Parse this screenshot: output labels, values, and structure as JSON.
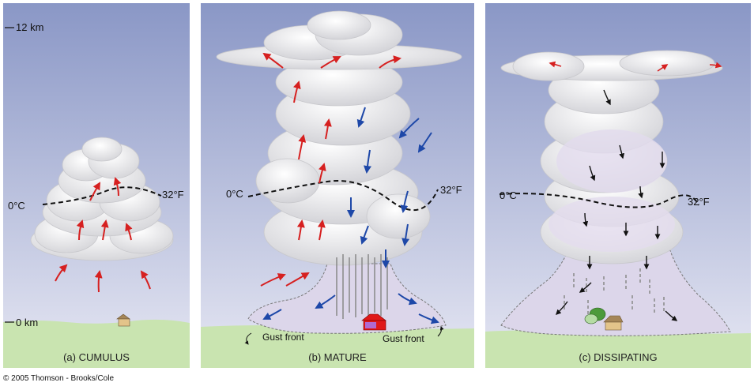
{
  "scale": {
    "top_label": "12 km",
    "bottom_label": "0 km"
  },
  "freezing": {
    "celsius": "0°C",
    "fahrenheit": "32°F"
  },
  "panels": [
    {
      "caption": "(a) CUMULUS"
    },
    {
      "caption": "(b) MATURE",
      "gust_left": "Gust front",
      "gust_right": "Gust front"
    },
    {
      "caption": "(c) DISSIPATING"
    }
  ],
  "copyright": "© 2005 Thomson - Brooks/Cole",
  "colors": {
    "updraft": "#d62020",
    "downdraft": "#1e48a8",
    "dissipating_arrow": "#111111",
    "ground": "#c9e4b0",
    "sky_top": "#8a97c6",
    "sky_bottom": "#e6e7f3"
  }
}
